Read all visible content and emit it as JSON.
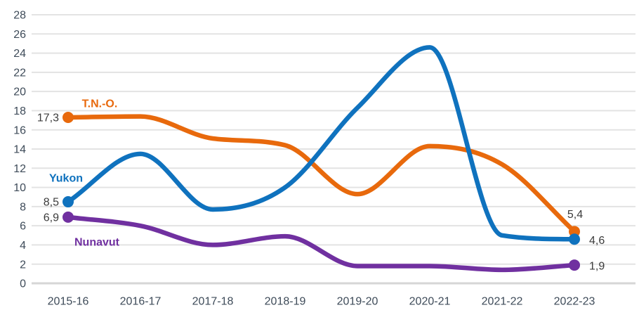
{
  "chart_data": {
    "type": "line",
    "title": "",
    "xlabel": "",
    "ylabel": "",
    "categories": [
      "2015-16",
      "2016-17",
      "2017-18",
      "2018-19",
      "2019-20",
      "2020-21",
      "2021-22",
      "2022-23"
    ],
    "series": [
      {
        "name": "T.N.-O.",
        "color": "#E8690C",
        "values": [
          17.3,
          17.4,
          15.1,
          14.4,
          9.3,
          14.3,
          12.4,
          5.4
        ],
        "first_point_label": "17,3",
        "last_point_label": "5,4"
      },
      {
        "name": "Yukon",
        "color": "#0F72BE",
        "values": [
          8.5,
          13.5,
          7.7,
          10.0,
          18.3,
          24.6,
          5.0,
          4.6
        ],
        "first_point_label": "8,5",
        "last_point_label": "4,6"
      },
      {
        "name": "Nunavut",
        "color": "#7030A0",
        "values": [
          6.9,
          6.0,
          4.0,
          4.9,
          1.8,
          1.8,
          1.4,
          1.9
        ],
        "first_point_label": "6,9",
        "last_point_label": "1,9"
      }
    ],
    "ylim": [
      0,
      28
    ],
    "ytick_step": 2,
    "grid": true,
    "legend": "inline-series-labels",
    "decimal_separator": ","
  },
  "colors": {
    "background": "#FFFFFF",
    "gridline": "#E3E3E3",
    "baseline": "#D6D6D6",
    "tick_text": "#3E4B59",
    "value_label_text": "#3B3B3B"
  }
}
